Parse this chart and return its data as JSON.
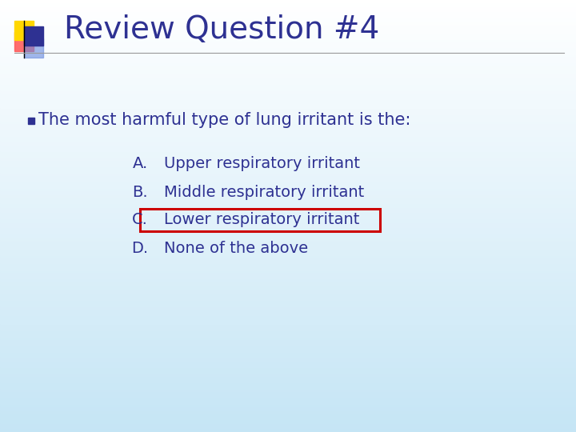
{
  "title": "Review Question #4",
  "title_color": "#2E3192",
  "title_fontsize": 28,
  "bullet_text": "The most harmful type of lung irritant is the:",
  "bullet_color": "#2E3192",
  "bullet_fontsize": 15,
  "options": [
    {
      "label": "A.",
      "text": "Upper respiratory irritant",
      "highlighted": false
    },
    {
      "label": "B.",
      "text": "Middle respiratory irritant",
      "highlighted": false
    },
    {
      "label": "C.",
      "text": "Lower respiratory irritant",
      "highlighted": true
    },
    {
      "label": "D.",
      "text": "None of the above",
      "highlighted": false
    }
  ],
  "option_color": "#2E3192",
  "option_fontsize": 14,
  "highlight_box_color": "#CC0000",
  "bg_top_color": "#FFFFFF",
  "bg_bottom_color": "#C5E5F5",
  "separator_color": "#999999",
  "logo": {
    "yellow": "#FFD700",
    "red": "#FF5555",
    "blue_dark": "#2E3192",
    "blue_light": "#6688DD"
  }
}
